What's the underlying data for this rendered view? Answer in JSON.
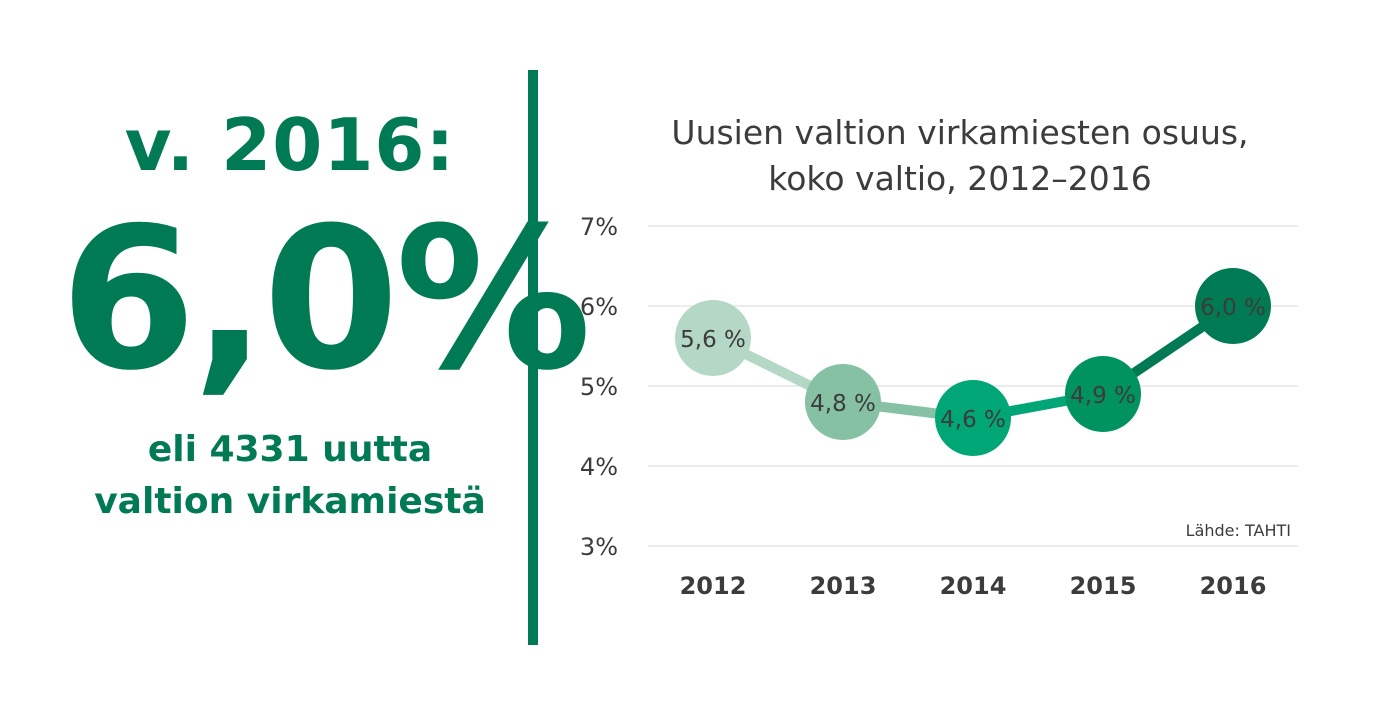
{
  "left": {
    "year_label": "v. 2016:",
    "big_value": "6,0%",
    "subtitle_line1": "eli 4331 uutta",
    "subtitle_line2": "valtion virkamiestä"
  },
  "chart_data": {
    "type": "line",
    "title_line1": "Uusien valtion virkamiesten osuus,",
    "title_line2": "koko valtio, 2012–2016",
    "categories": [
      "2012",
      "2013",
      "2014",
      "2015",
      "2016"
    ],
    "values": [
      5.6,
      4.8,
      4.6,
      4.9,
      6.0
    ],
    "data_labels": [
      "5,6 %",
      "4,8 %",
      "4,6 %",
      "4,9 %",
      "6,0 %"
    ],
    "point_colors": [
      "#b4d7c6",
      "#86c1a3",
      "#00a676",
      "#00935f",
      "#007a52"
    ],
    "segment_colors": [
      "#b4d7c6",
      "#86c1a3",
      "#00a676",
      "#007a52"
    ],
    "yticks": [
      "3%",
      "4%",
      "5%",
      "6%",
      "7%"
    ],
    "ytick_values": [
      3,
      4,
      5,
      6,
      7
    ],
    "ylim": [
      3,
      7
    ],
    "grid": true,
    "source": "Lähde: TAHTI"
  }
}
